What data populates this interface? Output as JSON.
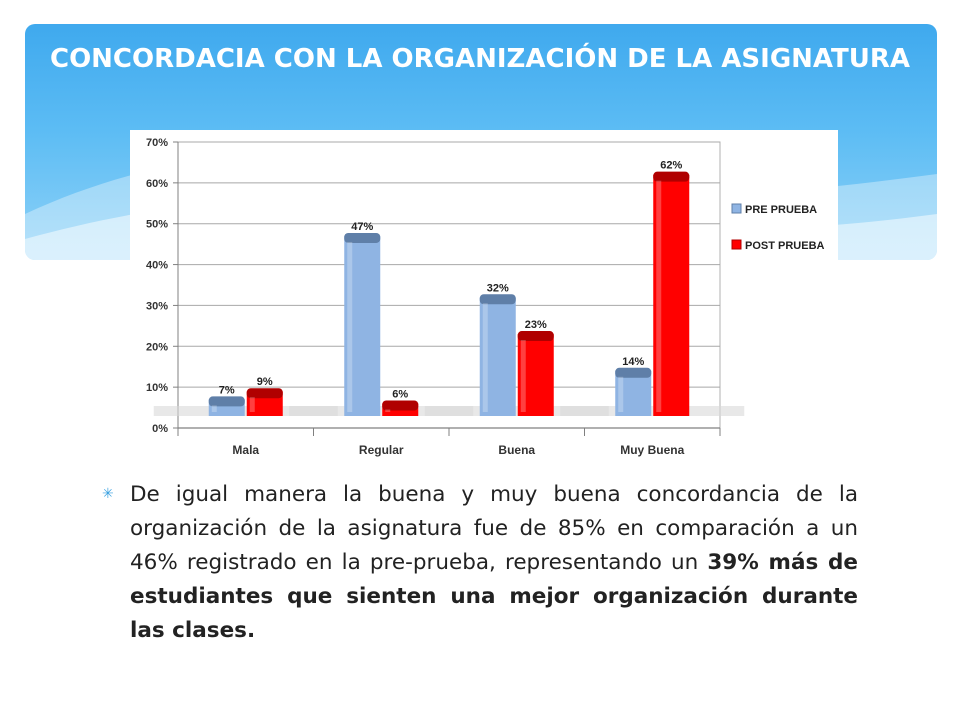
{
  "slide": {
    "title": "CONCORDACIA CON LA ORGANIZACIÓN DE LA ASIGNATURA",
    "bullet_icon": "asterisk-icon",
    "bullet_normal": "De igual manera la buena y muy buena concordancia de la organización de la asignatura fue de 85% en comparación a un 46% registrado en la pre-prueba, representando un ",
    "bullet_bold": "39% más de estudiantes que sienten una mejor organización durante las clases."
  },
  "chart_data": {
    "type": "bar",
    "categories": [
      "Mala",
      "Regular",
      "Buena",
      "Muy Buena"
    ],
    "series": [
      {
        "name": "PRE PRUEBA",
        "values": [
          7,
          47,
          32,
          14
        ],
        "labels": [
          "7%",
          "47%",
          "32%",
          "14%"
        ],
        "color": "#8fb4e3"
      },
      {
        "name": "POST PRUEBA",
        "values": [
          9,
          6,
          23,
          62
        ],
        "labels": [
          "9%",
          "6%",
          "23%",
          "62%"
        ],
        "color": "#ff0000"
      }
    ],
    "yticks": [
      "0%",
      "10%",
      "20%",
      "30%",
      "40%",
      "50%",
      "60%",
      "70%"
    ],
    "ylim": [
      0,
      70
    ],
    "grid": true,
    "legend": "right"
  },
  "colors": {
    "banner": "#4fb3f0",
    "pre": "#8fb4e3",
    "post": "#ff0000",
    "accent": "#3aa1e0"
  }
}
